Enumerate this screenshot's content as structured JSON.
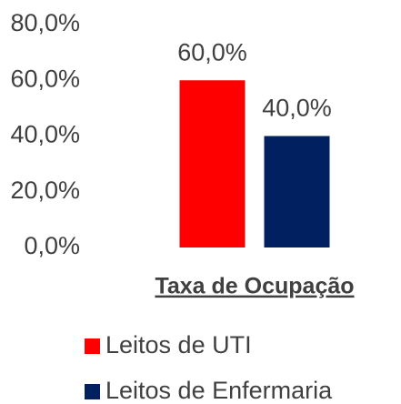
{
  "chart_data": {
    "type": "bar",
    "categories": [
      "Taxa de Ocupação"
    ],
    "series": [
      {
        "name": "Leitos de UTI",
        "color": "#ff0000",
        "values": [
          60
        ],
        "value_labels": [
          "60,0%"
        ]
      },
      {
        "name": "Leitos de Enfermaria",
        "color": "#002060",
        "values": [
          40
        ],
        "value_labels": [
          "40,0%"
        ]
      }
    ],
    "ylim": [
      0,
      80
    ],
    "yticks": [
      {
        "value": 0,
        "label": "0,0%"
      },
      {
        "value": 20,
        "label": "20,0%"
      },
      {
        "value": 40,
        "label": "40,0%"
      },
      {
        "value": 60,
        "label": "60,0%"
      },
      {
        "value": 80,
        "label": "80,0%"
      }
    ],
    "grid": false,
    "legend": "bottom"
  }
}
